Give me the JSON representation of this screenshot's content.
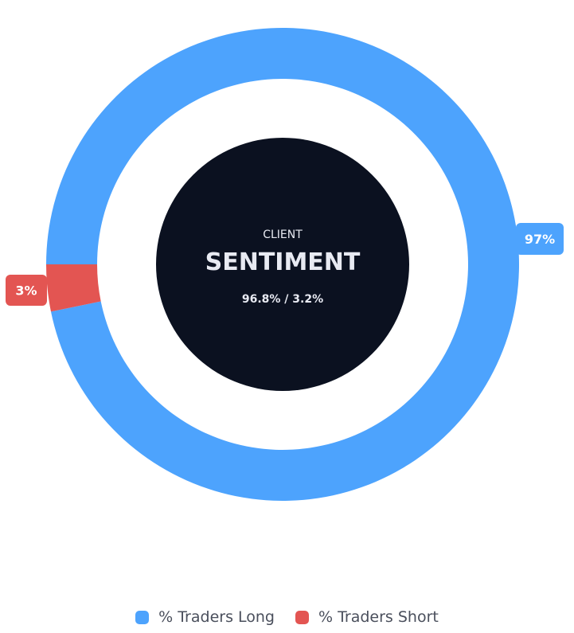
{
  "chart_data": {
    "type": "pie",
    "variant": "donut",
    "center": {
      "eyebrow": "CLIENT",
      "title": "SENTIMENT",
      "subtitle": "96.8% / 3.2%"
    },
    "series": [
      {
        "name": "% Traders Long",
        "value": 96.8,
        "label": "97%",
        "color": "#4da3fd"
      },
      {
        "name": "% Traders Short",
        "value": 3.2,
        "label": "3%",
        "color": "#e35552"
      }
    ],
    "legend": {
      "position": "bottom"
    }
  },
  "colors": {
    "center_background": "#0b1120",
    "center_text": "#e8eaf2",
    "label_text": "#ffffff"
  }
}
